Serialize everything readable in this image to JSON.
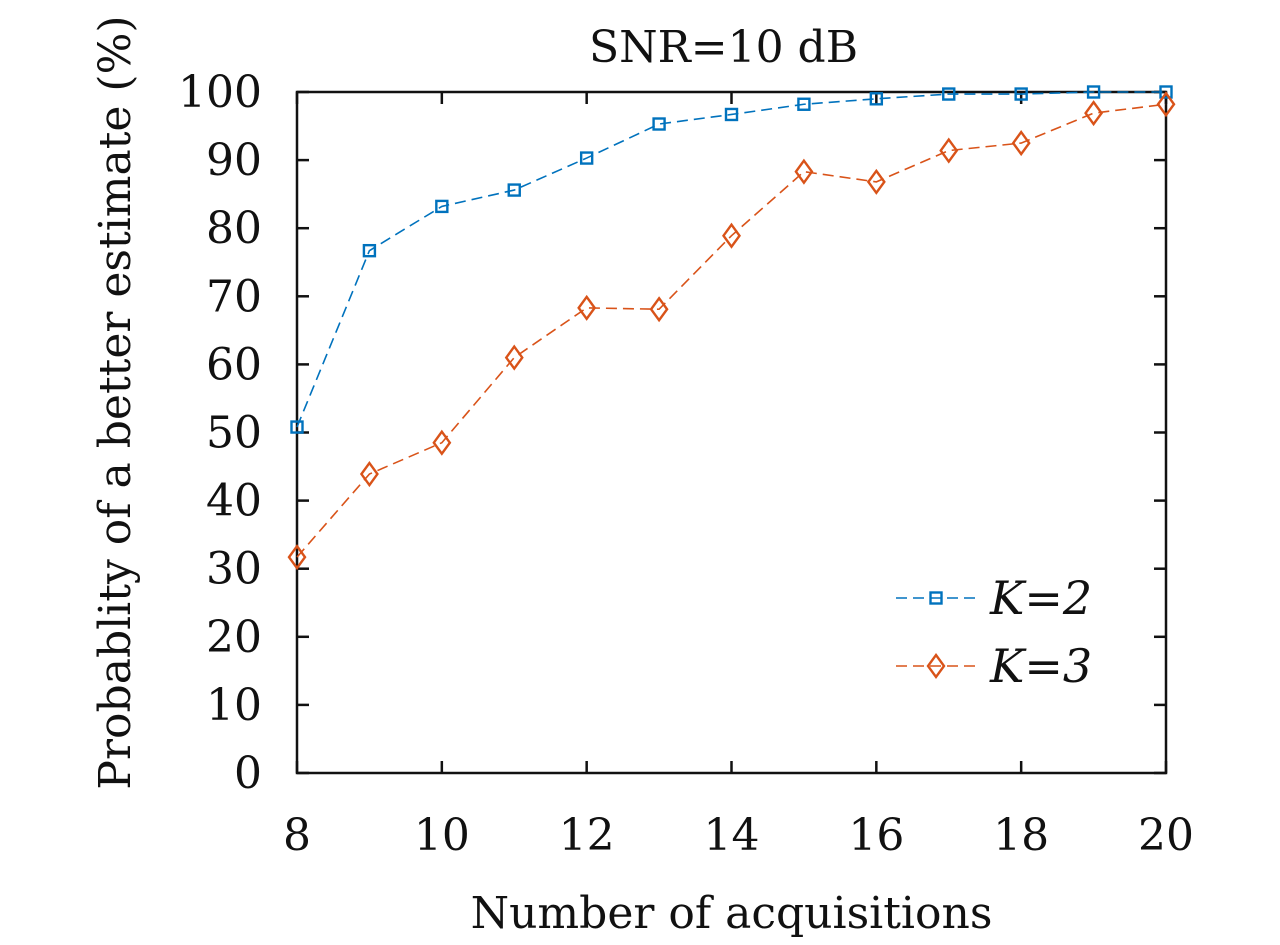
{
  "chart_data": {
    "type": "line",
    "title": "SNR=10 dB",
    "xlabel": "Number of acquisitions",
    "ylabel": "Probablity of a better estimate (%)",
    "xlim": [
      8,
      20
    ],
    "ylim": [
      0,
      100
    ],
    "xticks": [
      8,
      10,
      12,
      14,
      16,
      18,
      20
    ],
    "yticks": [
      0,
      10,
      20,
      30,
      40,
      50,
      60,
      70,
      80,
      90,
      100
    ],
    "grid": false,
    "legend_position": "bottom-right",
    "x": [
      8,
      9,
      10,
      11,
      12,
      13,
      14,
      15,
      16,
      17,
      18,
      19,
      20
    ],
    "series": [
      {
        "name": "K=2",
        "color": "#0072BD",
        "marker": "square",
        "line_style": "dashed",
        "values": [
          50.8,
          76.7,
          83.2,
          85.6,
          90.3,
          95.3,
          96.7,
          98.2,
          99.0,
          99.7,
          99.7,
          100,
          100
        ]
      },
      {
        "name": "K=3",
        "color": "#D95319",
        "marker": "diamond",
        "line_style": "dashed",
        "values": [
          31.7,
          43.9,
          48.5,
          61.0,
          68.3,
          68.1,
          78.9,
          88.3,
          86.8,
          91.4,
          92.5,
          96.9,
          98.2
        ]
      }
    ]
  }
}
